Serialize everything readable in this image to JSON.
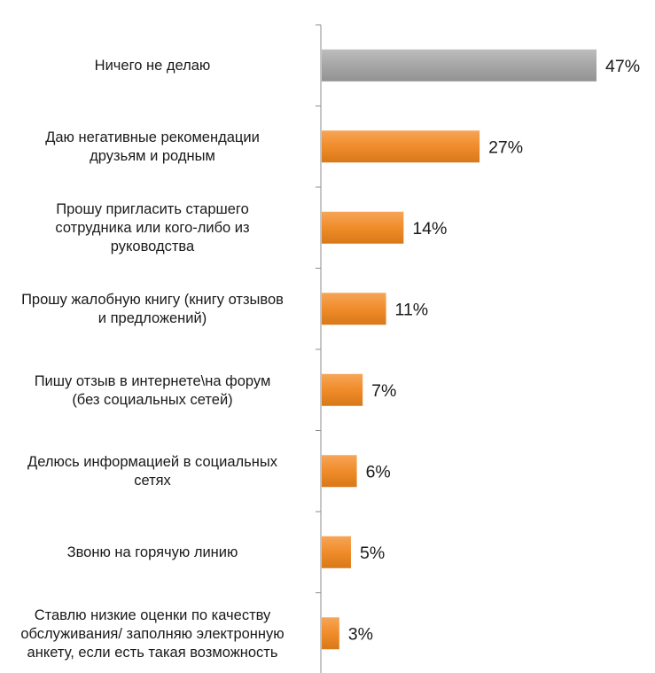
{
  "chart_data": {
    "type": "bar",
    "orientation": "horizontal",
    "categories": [
      [
        "Ничего не делаю"
      ],
      [
        "Даю негативные рекомендации",
        "друзьям и родным"
      ],
      [
        "Прошу пригласить старшего",
        "сотрудника или кого-либо из",
        "руководства"
      ],
      [
        "Прошу жалобную книгу (книгу отзывов",
        "и предложений)"
      ],
      [
        "Пишу отзыв в интернете\\на форум",
        "(без социальных сетей)"
      ],
      [
        "Делюсь информацией в социальных",
        "сетях"
      ],
      [
        "Звоню на горячую линию"
      ],
      [
        "Ставлю низкие оценки по качеству",
        "обслуживания/ заполняю электронную",
        "анкету, если есть такая возможность"
      ]
    ],
    "values": [
      47,
      27,
      14,
      11,
      7,
      6,
      5,
      3
    ],
    "value_labels": [
      "47%",
      "27%",
      "14%",
      "11%",
      "7%",
      "6%",
      "5%",
      "3%"
    ],
    "unit": "%",
    "highlight_index": 0,
    "xlim": [
      0,
      47
    ],
    "grid": false,
    "legend": "none",
    "colors": {
      "highlight_bar": "#a6a6a6",
      "bar": "#f08c2a",
      "bar_dark": "#d06e14",
      "axis": "#8c8c8c",
      "label_text": "#1a1a1a",
      "value_text": "#1a1a1a"
    }
  }
}
